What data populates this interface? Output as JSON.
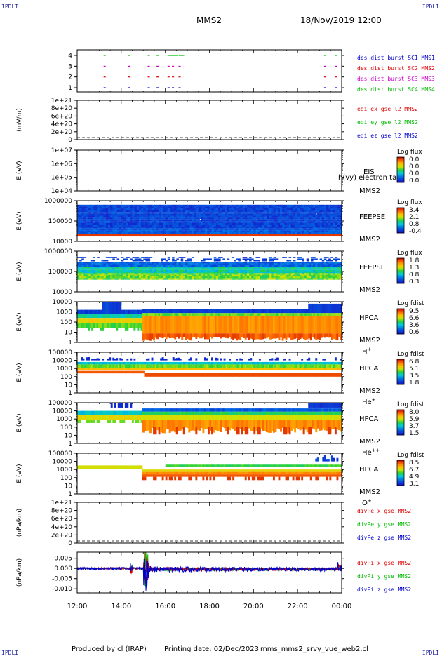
{
  "corners": [
    "IPDLI",
    "IPDLI",
    "IPDLI",
    "IPDLI"
  ],
  "header": {
    "spacecraft": "MMS2",
    "datetime": "18/Nov/2019 12:00"
  },
  "footer": {
    "produced": "Produced by cl (IRAP)",
    "printing": "Printing date: 02/Dec/2023",
    "script": "mms_mms2_srvy_vue_web2.cl"
  },
  "colors": {
    "c1": "#0000cc",
    "c2": "#dd0000",
    "c3": "#cc00cc",
    "c4": "#00bb00",
    "frame": "#000000"
  },
  "chart_data": [
    {
      "type": "scatter",
      "ylabel": "",
      "yticks": [
        "1",
        "2",
        "3",
        "4"
      ],
      "legend": [
        {
          "text": "des dist burst SC1 MMS1",
          "color": "#0000cc"
        },
        {
          "text": "des dist burst SC2 MMS2",
          "color": "#dd0000"
        },
        {
          "text": "des dist burst SC3 MMS3",
          "color": "#cc00cc"
        },
        {
          "text": "des dist burst SC4 MMS4",
          "color": "#00bb00"
        }
      ],
      "burst_hours": [
        13.2,
        14.3,
        15.2,
        15.6,
        16.1,
        16.3,
        16.6,
        23.2,
        23.7
      ]
    },
    {
      "type": "line",
      "ylabel": "(mV/m)",
      "yticks": [
        "0",
        "2e+20",
        "4e+20",
        "6e+20",
        "8e+20",
        "1e+21"
      ],
      "legend": [
        {
          "text": "edi ex gse l2 MMS2",
          "color": "#dd0000"
        },
        {
          "text": "edi ey gse l2 MMS2",
          "color": "#00bb00"
        },
        {
          "text": "edi ez gse l2 MMS2",
          "color": "#0000cc"
        }
      ]
    },
    {
      "type": "heatmap",
      "ylabel": "E (eV)",
      "yticks": [
        "1e+04",
        "1e+05",
        "1e+06",
        "1e+07"
      ],
      "instrument": "EIS",
      "species": "MMS2",
      "overlay": "h(vy) electron ta",
      "cbar_title": "Log flux",
      "cbar_ticks": [
        "0.0",
        "0.0",
        "0.0",
        "0.0"
      ]
    },
    {
      "type": "heatmap",
      "ylabel": "E (eV)",
      "yticks": [
        "10000",
        "100000",
        "1000000"
      ],
      "instrument": "FEEPSE",
      "species": "MMS2",
      "cbar_title": "Log flux",
      "cbar_ticks": [
        "3.4",
        "2.1",
        "0.8",
        "-0.4"
      ]
    },
    {
      "type": "heatmap",
      "ylabel": "E (eV)",
      "yticks": [
        "10000",
        "100000",
        "1000000"
      ],
      "instrument": "FEEPSI",
      "species": "MMS2",
      "cbar_title": "Log flux",
      "cbar_ticks": [
        "1.8",
        "1.3",
        "0.8",
        "0.3"
      ]
    },
    {
      "type": "heatmap",
      "ylabel": "E (eV)",
      "yticks": [
        "1",
        "10",
        "100",
        "1000",
        "10000"
      ],
      "instrument": "HPCA",
      "species": "MMS2",
      "ion": "H",
      "ion_sup": "+",
      "cbar_title": "Log fdist",
      "cbar_ticks": [
        "9.5",
        "6.6",
        "3.6",
        "0.6"
      ]
    },
    {
      "type": "heatmap",
      "ylabel": "E (eV)",
      "yticks": [
        "1",
        "10",
        "100",
        "1000",
        "10000",
        "100000"
      ],
      "instrument": "HPCA",
      "species": "MMS2",
      "ion": "He",
      "ion_sup": "+",
      "cbar_title": "Log fdist",
      "cbar_ticks": [
        "6.8",
        "5.1",
        "3.5",
        "1.8"
      ]
    },
    {
      "type": "heatmap",
      "ylabel": "E (eV)",
      "yticks": [
        "1",
        "10",
        "100",
        "1000",
        "10000",
        "100000"
      ],
      "instrument": "HPCA",
      "species": "MMS2",
      "ion": "He",
      "ion_sup": "++",
      "cbar_title": "Log fdist",
      "cbar_ticks": [
        "8.0",
        "5.9",
        "3.7",
        "1.5"
      ]
    },
    {
      "type": "heatmap",
      "ylabel": "E (eV)",
      "yticks": [
        "1",
        "10",
        "100",
        "1000",
        "10000",
        "100000"
      ],
      "instrument": "HPCA",
      "species": "MMS2",
      "ion": "O",
      "ion_sup": "+",
      "cbar_title": "Log fdist",
      "cbar_ticks": [
        "8.5",
        "6.7",
        "4.9",
        "3.1"
      ]
    },
    {
      "type": "line",
      "ylabel": "(nPa/km)",
      "yticks": [
        "0",
        "2e+20",
        "4e+20",
        "6e+20",
        "8e+20",
        "1e+21"
      ],
      "legend": [
        {
          "text": "divPe x gse MMS2",
          "color": "#dd0000"
        },
        {
          "text": "divPe y gse MMS2",
          "color": "#00bb00"
        },
        {
          "text": "divPe z gse MMS2",
          "color": "#0000cc"
        }
      ]
    },
    {
      "type": "line",
      "ylabel": "(nPa/km)",
      "yticks": [
        "-0.010",
        "-0.005",
        "0.000",
        "0.005"
      ],
      "ylim": [
        -0.012,
        0.008
      ],
      "legend": [
        {
          "text": "divPi x gse MMS2",
          "color": "#dd0000"
        },
        {
          "text": "divPi y gse MMS2",
          "color": "#00bb00"
        },
        {
          "text": "divPi z gse MMS2",
          "color": "#0000cc"
        }
      ]
    }
  ],
  "xaxis": {
    "ticks": [
      "12:00",
      "14:00",
      "16:00",
      "18:00",
      "20:00",
      "22:00",
      "00:00"
    ],
    "start_hour": 12,
    "end_hour": 24
  }
}
